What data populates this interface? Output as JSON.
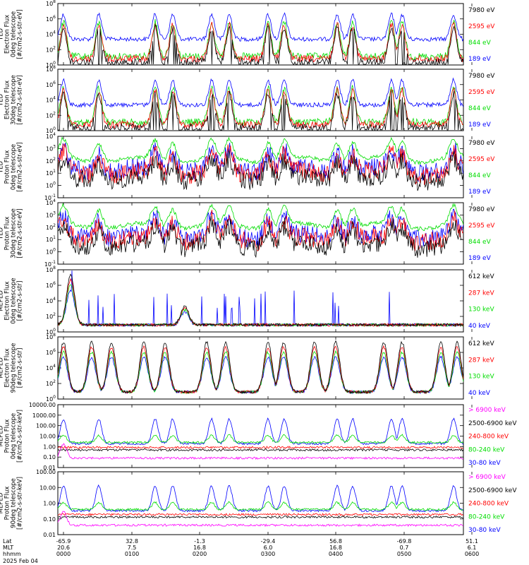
{
  "chart_data": [
    {
      "type": "line",
      "scale": "log",
      "ylabel": [
        "TED",
        "Electron Flux",
        "0deg telescope",
        "[#/cm2-s-str-eV]"
      ],
      "yticks": [
        "10^0",
        "10^2",
        "10^4",
        "10^6",
        "10^8"
      ],
      "legend": [
        {
          "label": "7980 eV",
          "color": "#000000"
        },
        {
          "label": "2595 eV",
          "color": "#ff0000"
        },
        {
          "label": "844 eV",
          "color": "#00dd00"
        },
        {
          "label": "189 eV",
          "color": "#0000ff"
        }
      ]
    },
    {
      "type": "line",
      "scale": "log",
      "ylabel": [
        "TED",
        "Electron Flux",
        "30deg telescope",
        "[#/cm2-s-str-eV]"
      ],
      "yticks": [
        "10^0",
        "10^2",
        "10^4",
        "10^6",
        "10^8"
      ],
      "legend": [
        {
          "label": "7980 eV",
          "color": "#000000"
        },
        {
          "label": "2595 eV",
          "color": "#ff0000"
        },
        {
          "label": "844 eV",
          "color": "#00dd00"
        },
        {
          "label": "189 eV",
          "color": "#0000ff"
        }
      ]
    },
    {
      "type": "line",
      "scale": "log",
      "ylabel": [
        "TED",
        "Proton Flux",
        "0deg telescope",
        "[#/cm2-s-str-eV]"
      ],
      "yticks": [
        "10^-1",
        "10^0",
        "10^1",
        "10^2",
        "10^3",
        "10^4"
      ],
      "legend": [
        {
          "label": "7980 eV",
          "color": "#000000"
        },
        {
          "label": "2595 eV",
          "color": "#ff0000"
        },
        {
          "label": "844 eV",
          "color": "#00dd00"
        },
        {
          "label": "189 eV",
          "color": "#0000ff"
        }
      ]
    },
    {
      "type": "line",
      "scale": "log",
      "ylabel": [
        "TED",
        "Proton Flux",
        "30deg telescope",
        "[#/cm2-s-str-eV]"
      ],
      "yticks": [
        "10^-1",
        "10^0",
        "10^1",
        "10^2",
        "10^3",
        "10^4"
      ],
      "legend": [
        {
          "label": "7980 eV",
          "color": "#000000"
        },
        {
          "label": "2595 eV",
          "color": "#ff0000"
        },
        {
          "label": "844 eV",
          "color": "#00dd00"
        },
        {
          "label": "189 eV",
          "color": "#0000ff"
        }
      ]
    },
    {
      "type": "line",
      "scale": "log",
      "ylabel": [
        "MEPED",
        "Electron Flux",
        "0deg telescope",
        "[#/cm2-s-str]"
      ],
      "yticks": [
        "10^0",
        "10^2",
        "10^4",
        "10^6",
        "10^8"
      ],
      "legend": [
        {
          "label": "612 keV",
          "color": "#000000"
        },
        {
          "label": "287 keV",
          "color": "#ff0000"
        },
        {
          "label": "130 keV",
          "color": "#00dd00"
        },
        {
          "label": "40 keV",
          "color": "#0000ff"
        }
      ]
    },
    {
      "type": "line",
      "scale": "log",
      "ylabel": [
        "MEPED",
        "Electron Flux",
        "90deg telescope",
        "[#/cm2-s-str]"
      ],
      "yticks": [
        "10^0",
        "10^2",
        "10^4",
        "10^6",
        "10^8"
      ],
      "legend": [
        {
          "label": "612 keV",
          "color": "#000000"
        },
        {
          "label": "287 keV",
          "color": "#ff0000"
        },
        {
          "label": "130 keV",
          "color": "#00dd00"
        },
        {
          "label": "40 keV",
          "color": "#0000ff"
        }
      ]
    },
    {
      "type": "line",
      "scale": "log",
      "ylabel": [
        "MEPED",
        "Proton Flux",
        "0deg telescope",
        "[#/cm2-s-str-keV]"
      ],
      "yticks": [
        "0.01",
        "0.10",
        "1.00",
        "10.00",
        "100.00",
        "1000.00",
        "10000.00"
      ],
      "legend": [
        {
          "label": "> 6900 keV",
          "color": "#ff00ff"
        },
        {
          "label": "2500-6900 keV",
          "color": "#000000"
        },
        {
          "label": "240-800 keV",
          "color": "#ff0000"
        },
        {
          "label": "80-240 keV",
          "color": "#00dd00"
        },
        {
          "label": "30-80 keV",
          "color": "#0000ff"
        }
      ]
    },
    {
      "type": "line",
      "scale": "log",
      "ylabel": [
        "MEPED",
        "Proton Flux",
        "90deg telescope",
        "[#/cm2-s-str-keV]"
      ],
      "yticks": [
        "0.01",
        "0.10",
        "1.00",
        "10.00",
        "100.00"
      ],
      "legend": [
        {
          "label": "> 6900 keV",
          "color": "#ff00ff"
        },
        {
          "label": "2500-6900 keV",
          "color": "#000000"
        },
        {
          "label": "240-800 keV",
          "color": "#ff0000"
        },
        {
          "label": "80-240 keV",
          "color": "#00dd00"
        },
        {
          "label": "30-80 keV",
          "color": "#0000ff"
        }
      ]
    }
  ],
  "xaxis": {
    "row_labels": [
      "Lat",
      "MLT",
      "hhmm"
    ],
    "lat": [
      "-65.9",
      "32.8",
      "-1.3",
      "-29.4",
      "56.8",
      "-69.8",
      "51.1"
    ],
    "mlt": [
      "20.6",
      "7.5",
      "16.8",
      "6.0",
      "16.8",
      "0.7",
      "6.1"
    ],
    "hhmm": [
      "0000",
      "0100",
      "0200",
      "0300",
      "0400",
      "0500",
      "0600"
    ],
    "date": "2025 Feb 04"
  }
}
